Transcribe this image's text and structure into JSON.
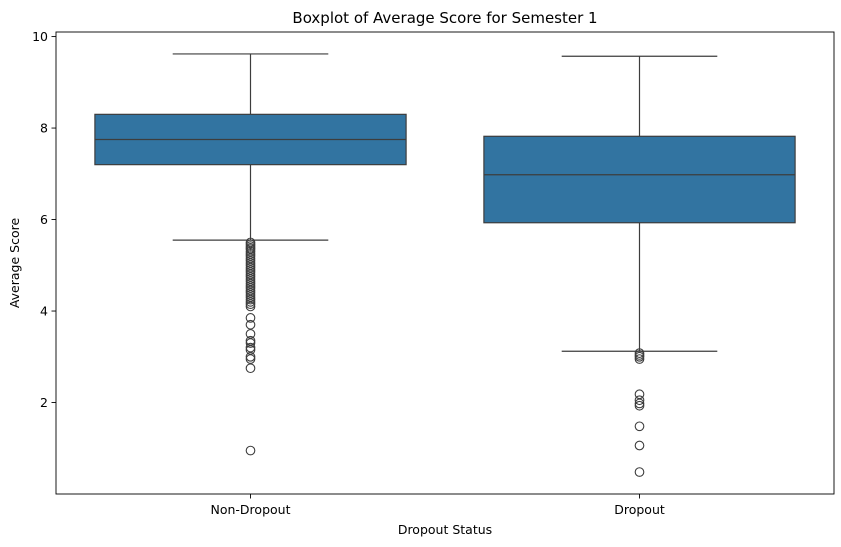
{
  "chart_data": {
    "type": "boxplot",
    "title": "Boxplot of Average Score for Semester 1",
    "xlabel": "Dropout Status",
    "ylabel": "Average Score",
    "categories": [
      "Non-Dropout",
      "Dropout"
    ],
    "ylim": [
      0.0,
      10.1
    ],
    "yticks": [
      2,
      4,
      6,
      8,
      10
    ],
    "box_color": "#3274a1",
    "line_color": "#3d3d3d",
    "grid": false,
    "boxes": [
      {
        "category": "Non-Dropout",
        "whisker_low": 5.55,
        "q1": 7.2,
        "median": 7.75,
        "q3": 8.3,
        "whisker_high": 9.62,
        "outliers": [
          5.5,
          5.46,
          5.42,
          5.38,
          5.35,
          5.3,
          5.25,
          5.2,
          5.15,
          5.1,
          5.05,
          5.0,
          4.95,
          4.9,
          4.85,
          4.8,
          4.75,
          4.7,
          4.65,
          4.6,
          4.55,
          4.5,
          4.45,
          4.4,
          4.35,
          4.3,
          4.25,
          4.2,
          4.15,
          4.1,
          3.85,
          3.7,
          3.5,
          3.35,
          3.3,
          3.2,
          3.15,
          3.0,
          2.95,
          2.75,
          0.95
        ]
      },
      {
        "category": "Dropout",
        "whisker_low": 3.12,
        "q1": 5.93,
        "median": 6.98,
        "q3": 7.82,
        "whisker_high": 9.57,
        "outliers": [
          3.08,
          3.04,
          3.0,
          2.95,
          2.18,
          2.05,
          1.98,
          1.93,
          1.48,
          1.06,
          0.48
        ]
      }
    ]
  }
}
